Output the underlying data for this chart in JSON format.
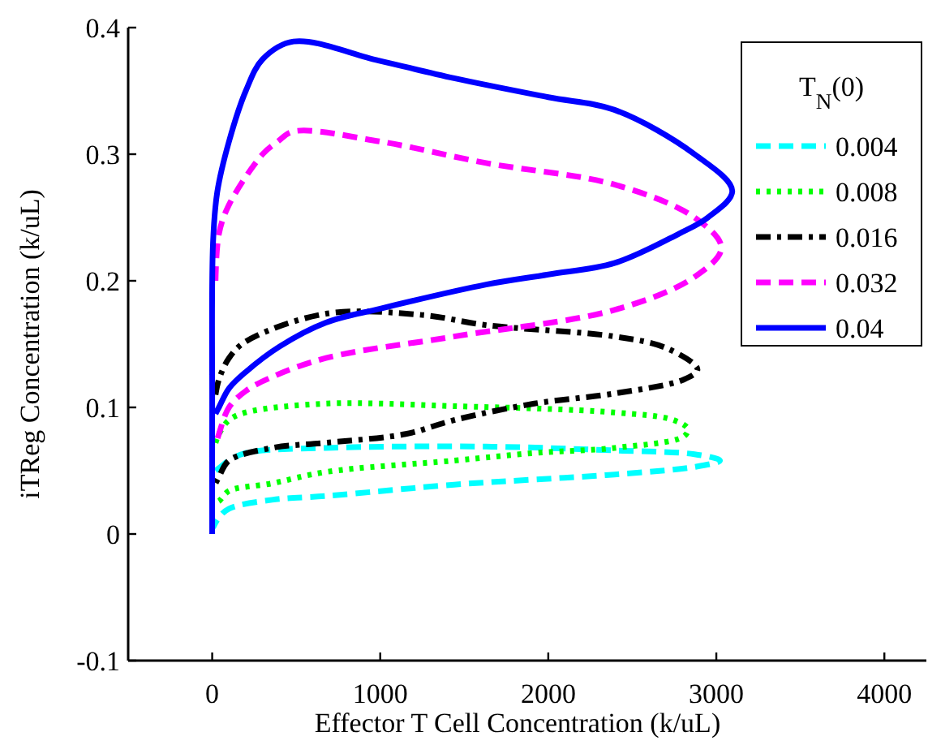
{
  "chart_data": {
    "type": "line",
    "xlabel": "Effector T Cell Concentration (k/uL)",
    "ylabel": "iTReg Concentration (k/uL)",
    "legend_title": "T$_{N}$(0)",
    "legend": "top right",
    "grid": false,
    "xlim": [
      -500,
      4250
    ],
    "xticks": [
      0,
      1000,
      2000,
      3000,
      4000
    ],
    "ylim": [
      -0.1,
      0.4
    ],
    "yticks": [
      -0.1,
      0,
      0.1,
      0.2,
      0.3,
      0.4
    ],
    "series": [
      {
        "name": "0.004",
        "color": "#00ffff",
        "line_style": "dashed",
        "x": [
          20,
          40,
          100,
          200,
          677,
          1630,
          2394,
          2870,
          3022,
          2870,
          2394,
          1917,
          1440,
          677,
          356,
          100,
          40,
          5
        ],
        "values": [
          0.05,
          0.052,
          0.058,
          0.064,
          0.068,
          0.069,
          0.066,
          0.063,
          0.058,
          0.053,
          0.047,
          0.043,
          0.039,
          0.03,
          0.027,
          0.02,
          0.013,
          0.005
        ]
      },
      {
        "name": "0.008",
        "color": "#00ff00",
        "line_style": "dotted",
        "x": [
          20,
          40,
          100,
          200,
          677,
          1440,
          2394,
          2745,
          2830,
          2806,
          2394,
          1917,
          1440,
          677,
          356,
          100,
          40,
          20
        ],
        "values": [
          0.072,
          0.079,
          0.09,
          0.096,
          0.103,
          0.101,
          0.096,
          0.09,
          0.083,
          0.077,
          0.068,
          0.064,
          0.058,
          0.049,
          0.04,
          0.034,
          0.026,
          0.025
        ]
      },
      {
        "name": "0.016",
        "color": "#000000",
        "line_style": "dashdot",
        "x": [
          20,
          40,
          100,
          200,
          677,
          1250,
          1630,
          2394,
          2700,
          2888,
          2806,
          2394,
          1917,
          1440,
          1152,
          677,
          356,
          100,
          40,
          20
        ],
        "values": [
          0.11,
          0.122,
          0.139,
          0.152,
          0.174,
          0.173,
          0.165,
          0.156,
          0.147,
          0.13,
          0.122,
          0.111,
          0.103,
          0.09,
          0.079,
          0.072,
          0.068,
          0.058,
          0.045,
          0.04
        ]
      },
      {
        "name": "0.032",
        "color": "#ff00ff",
        "line_style": "dashed",
        "x": [
          20,
          40,
          100,
          300,
          390,
          484,
          1000,
          1630,
          2394,
          2870,
          3030,
          2870,
          2394,
          1440,
          677,
          356,
          200,
          100,
          40,
          20
        ],
        "values": [
          0.2,
          0.237,
          0.26,
          0.3,
          0.31,
          0.318,
          0.31,
          0.293,
          0.276,
          0.25,
          0.226,
          0.203,
          0.177,
          0.156,
          0.139,
          0.124,
          0.113,
          0.1,
          0.079,
          0.07
        ]
      },
      {
        "name": "0.04",
        "color": "#0000ff",
        "line_style": "solid",
        "x": [
          0,
          0,
          5,
          30,
          100,
          200,
          300,
          484,
          990,
          1440,
          2000,
          2394,
          2870,
          3095,
          2950,
          2775,
          2394,
          2000,
          1630,
          1000,
          677,
          400,
          200,
          100,
          40,
          20
        ],
        "values": [
          0,
          0.1,
          0.23,
          0.27,
          0.31,
          0.35,
          0.375,
          0.389,
          0.374,
          0.36,
          0.345,
          0.335,
          0.3,
          0.271,
          0.25,
          0.237,
          0.214,
          0.205,
          0.197,
          0.178,
          0.167,
          0.148,
          0.128,
          0.115,
          0.1,
          0.095
        ]
      }
    ]
  }
}
